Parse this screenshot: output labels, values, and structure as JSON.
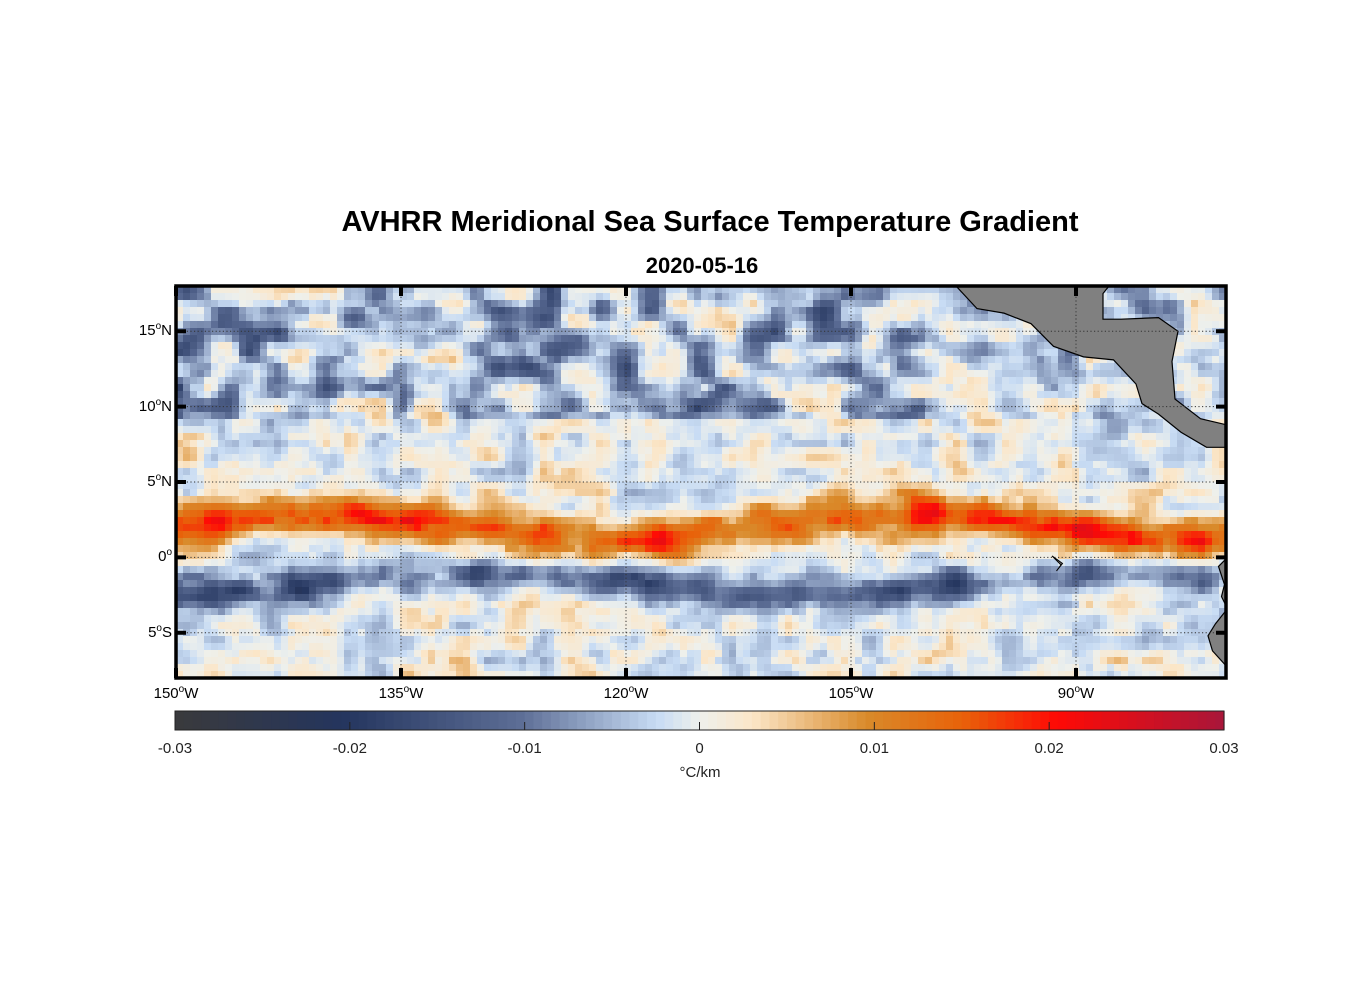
{
  "chart_data": {
    "type": "heatmap",
    "title": "AVHRR Meridional Sea Surface Temperature Gradient",
    "subtitle": "2020-05-16",
    "projection": "equirectangular",
    "lon_range": [
      -150,
      -80
    ],
    "lat_range": [
      -8,
      18
    ],
    "x_ticks": [
      {
        "value": -150,
        "label": "150",
        "hemi": "W"
      },
      {
        "value": -135,
        "label": "135",
        "hemi": "W"
      },
      {
        "value": -120,
        "label": "120",
        "hemi": "W"
      },
      {
        "value": -105,
        "label": "105",
        "hemi": "W"
      },
      {
        "value": -90,
        "label": "90",
        "hemi": "W"
      }
    ],
    "y_ticks": [
      {
        "value": 15,
        "label": "15",
        "hemi": "N"
      },
      {
        "value": 10,
        "label": "10",
        "hemi": "N"
      },
      {
        "value": 5,
        "label": "5",
        "hemi": "N"
      },
      {
        "value": 0,
        "label": "0",
        "hemi": ""
      },
      {
        "value": -5,
        "label": "5",
        "hemi": "S"
      }
    ],
    "grid": true,
    "colorbar": {
      "orientation": "horizontal",
      "location": "bottom",
      "range": [
        -0.03,
        0.03
      ],
      "ticks": [
        "-0.03",
        "-0.02",
        "-0.01",
        "0",
        "0.01",
        "0.02",
        "0.03"
      ],
      "unit": "°C/km",
      "colors": [
        "#3a3a3c",
        "#24355e",
        "#5d6e96",
        "#c8dcf4",
        "#eef0ec",
        "#fbe6c8",
        "#d98a2a",
        "#e8620a",
        "#ff0a05",
        "#a8163a"
      ]
    },
    "features": [
      {
        "name": "equatorial warm band",
        "lat_center": 2,
        "value_approx": 0.015
      },
      {
        "name": "south equatorial cold band",
        "lat_center": -2,
        "value_approx": -0.012
      },
      {
        "name": "northern cold eddies",
        "lat_center": 14,
        "value_approx": -0.012
      }
    ],
    "land_color": "#808080"
  }
}
